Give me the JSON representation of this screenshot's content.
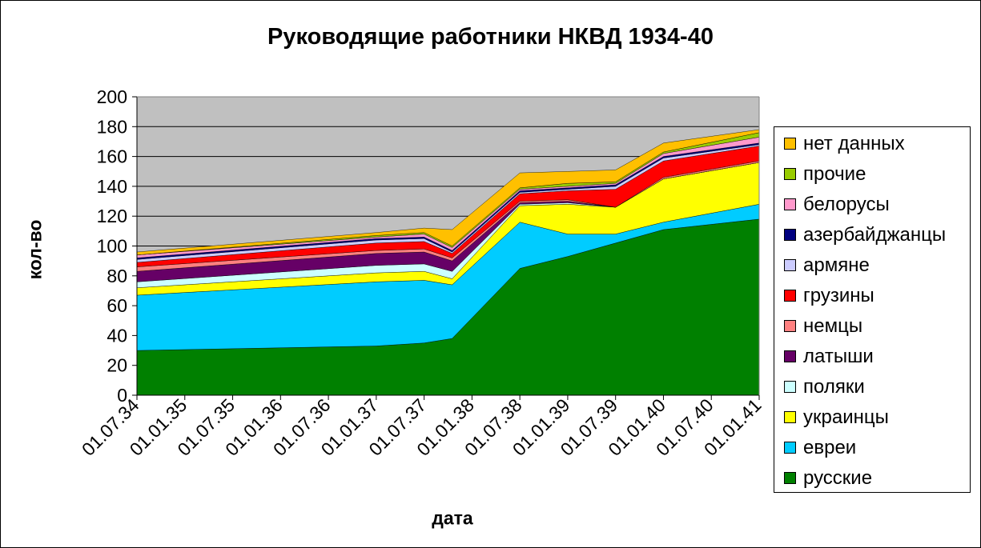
{
  "chart_data": {
    "type": "area",
    "stacked": true,
    "title": "Руководящие работники НКВД 1934-40",
    "xlabel": "дата",
    "ylabel": "кол-во",
    "ylim": [
      0,
      200
    ],
    "yticks": [
      0,
      20,
      40,
      60,
      80,
      100,
      120,
      140,
      160,
      180,
      200
    ],
    "grid": true,
    "legend_position": "right",
    "plot_background": "#c0c0c0",
    "x_tick_labels": [
      "01.07.34",
      "01.01.35",
      "01.07.35",
      "01.01.36",
      "01.07.36",
      "01.01.37",
      "01.07.37",
      "01.01.38",
      "01.07.38",
      "01.01.39",
      "01.07.39",
      "01.01.40",
      "01.07.40",
      "01.01.41"
    ],
    "x": [
      "01.07.34",
      "01.01.37",
      "01.07.37",
      "01.07.37",
      "01.07.38",
      "01.01.39",
      "01.07.39",
      "01.01.40",
      "01.01.41"
    ],
    "series": [
      {
        "name": "русские",
        "color": "#008000",
        "values": [
          30,
          33,
          35,
          38,
          85,
          93,
          102,
          111,
          118
        ]
      },
      {
        "name": "евреи",
        "color": "#00ccff",
        "values": [
          37,
          43,
          42,
          36,
          31,
          15,
          6,
          5,
          10
        ]
      },
      {
        "name": "украинцы",
        "color": "#ffff00",
        "values": [
          5,
          6,
          6,
          4,
          11,
          20,
          18,
          29,
          28
        ]
      },
      {
        "name": "поляки",
        "color": "#ccffff",
        "values": [
          4,
          5,
          5,
          5,
          1,
          1,
          0,
          0,
          0
        ]
      },
      {
        "name": "латыши",
        "color": "#660066",
        "values": [
          7,
          8,
          8,
          7,
          1,
          1,
          0,
          0,
          0
        ]
      },
      {
        "name": "немцы",
        "color": "#ff8080",
        "values": [
          3,
          2,
          2,
          2,
          1,
          1,
          0,
          1,
          1
        ]
      },
      {
        "name": "грузины",
        "color": "#ff0000",
        "values": [
          3,
          5,
          5,
          3,
          5,
          6,
          12,
          11,
          10
        ]
      },
      {
        "name": "армяне",
        "color": "#ccccff",
        "values": [
          2,
          2,
          2,
          1,
          1,
          1,
          2,
          2,
          1
        ]
      },
      {
        "name": "азербайджанцы",
        "color": "#000080",
        "values": [
          1,
          1,
          1,
          1,
          1,
          1,
          1,
          1,
          1
        ]
      },
      {
        "name": "белорусы",
        "color": "#ff99cc",
        "values": [
          2,
          1,
          2,
          2,
          1,
          1,
          1,
          2,
          4
        ]
      },
      {
        "name": "прочие",
        "color": "#99cc00",
        "values": [
          0,
          1,
          1,
          1,
          1,
          2,
          1,
          1,
          3
        ]
      },
      {
        "name": "нет данных",
        "color": "#ffc000",
        "values": [
          2,
          2,
          3,
          11,
          10,
          8,
          8,
          6,
          2
        ]
      }
    ]
  }
}
